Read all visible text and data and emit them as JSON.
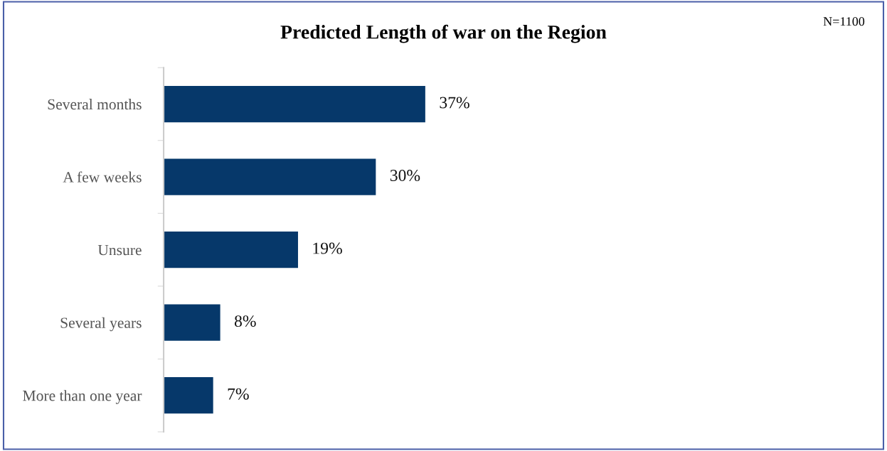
{
  "chart_data": {
    "type": "bar",
    "orientation": "horizontal",
    "title": "Predicted Length of war on the Region",
    "categories": [
      "Several months",
      "A few weeks",
      "Unsure",
      "Several years",
      "More than one year"
    ],
    "values": [
      37,
      30,
      19,
      8,
      7
    ],
    "value_labels": [
      "37%",
      "30%",
      "19%",
      "8%",
      "7%"
    ],
    "color": "#06386a",
    "tick_labels": "y",
    "grid": false,
    "annotations": [
      "N=1100"
    ]
  }
}
